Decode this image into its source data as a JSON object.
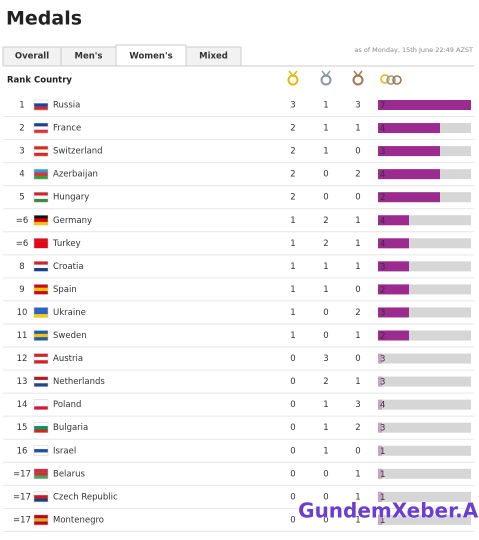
{
  "header": {
    "title": "Medals",
    "timestamp": "as of Monday, 15th June 22:49 AZST"
  },
  "tabs": [
    "Overall",
    "Men's",
    "Women's",
    "Mixed"
  ],
  "active_tab": 2,
  "table": {
    "columns": [
      "Rank",
      "Country"
    ],
    "rows": [
      [
        "1",
        "Russia",
        3,
        1,
        3,
        7
      ],
      [
        "2",
        "France",
        2,
        1,
        1,
        4
      ],
      [
        "3",
        "Switzerland",
        2,
        1,
        0,
        3
      ],
      [
        "4",
        "Azerbaijan",
        2,
        0,
        2,
        4
      ],
      [
        "5",
        "Hungary",
        2,
        0,
        0,
        2
      ],
      [
        "=6",
        "Germany",
        1,
        2,
        1,
        4
      ],
      [
        "=6",
        "Turkey",
        1,
        2,
        1,
        4
      ],
      [
        "8",
        "Croatia",
        1,
        1,
        1,
        3
      ],
      [
        "9",
        "Spain",
        1,
        1,
        0,
        2
      ],
      [
        "10",
        "Ukraine",
        1,
        0,
        2,
        3
      ],
      [
        "11",
        "Sweden",
        1,
        0,
        1,
        2
      ],
      [
        "12",
        "Austria",
        0,
        3,
        0,
        3
      ],
      [
        "13",
        "Netherlands",
        0,
        2,
        1,
        3
      ],
      [
        "14",
        "Poland",
        0,
        1,
        3,
        4
      ],
      [
        "15",
        "Bulgaria",
        0,
        1,
        2,
        3
      ],
      [
        "16",
        "Israel",
        0,
        1,
        0,
        1
      ],
      [
        "=17",
        "Belarus",
        0,
        0,
        1,
        1
      ],
      [
        "=17",
        "Czech Republic",
        0,
        0,
        1,
        1
      ],
      [
        "=17",
        "Montenegro",
        0,
        0,
        1,
        1
      ]
    ]
  },
  "watermark": "GundemXeber.Az"
}
